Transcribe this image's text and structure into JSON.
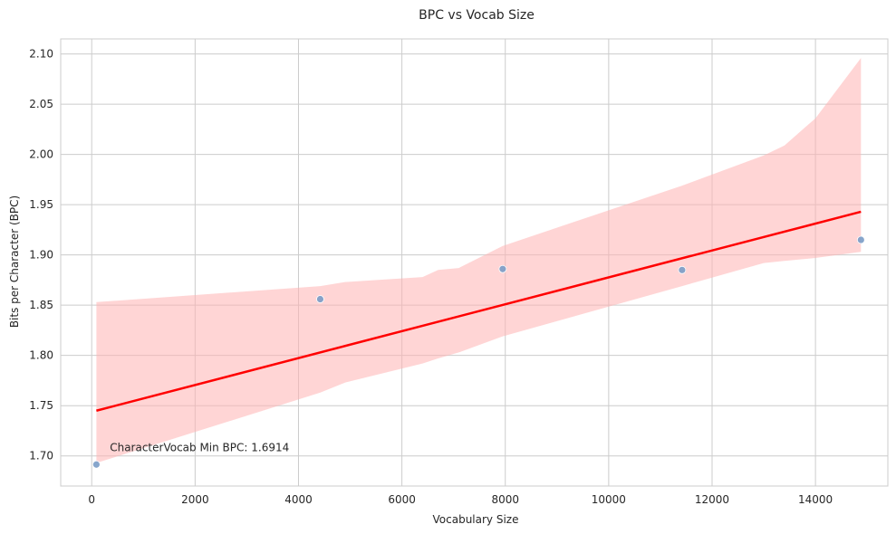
{
  "chart_data": {
    "type": "scatter",
    "title": "BPC vs Vocab Size",
    "xlabel": "Vocabulary Size",
    "ylabel": "Bits per Character (BPC)",
    "xlim": [
      -600,
      15400
    ],
    "ylim": [
      1.67,
      2.115
    ],
    "xticks": [
      0,
      2000,
      4000,
      6000,
      8000,
      10000,
      12000,
      14000
    ],
    "yticks": [
      1.7,
      1.75,
      1.8,
      1.85,
      1.9,
      1.95,
      2.0,
      2.05,
      2.1
    ],
    "xtick_labels": [
      "0",
      "2000",
      "4000",
      "6000",
      "8000",
      "10000",
      "12000",
      "14000"
    ],
    "ytick_labels": [
      "1.70",
      "1.75",
      "1.80",
      "1.85",
      "1.90",
      "1.95",
      "2.00",
      "2.05",
      "2.10"
    ],
    "grid": true,
    "points": {
      "x": [
        90,
        4420,
        7950,
        11420,
        14880
      ],
      "y": [
        1.6914,
        1.856,
        1.886,
        1.885,
        1.915
      ],
      "color": "#7a9cc6"
    },
    "regression": {
      "x": [
        90,
        14880
      ],
      "y": [
        1.745,
        1.943
      ],
      "color": "#ff0000"
    },
    "confidence_band": {
      "color": "#ffb3b3",
      "x": [
        90,
        4420,
        4900,
        6400,
        6700,
        7100,
        7950,
        11420,
        13000,
        13400,
        14000,
        14880
      ],
      "upper": [
        1.853,
        1.869,
        1.873,
        1.878,
        1.885,
        1.887,
        1.909,
        1.969,
        1.999,
        2.009,
        2.036,
        2.096
      ],
      "lower": [
        1.693,
        1.763,
        1.773,
        1.792,
        1.797,
        1.803,
        1.819,
        1.869,
        1.892,
        1.894,
        1.897,
        1.903
      ]
    },
    "annotation": {
      "text": "CharacterVocab Min BPC: 1.6914",
      "x": 350,
      "y": 1.7045
    }
  }
}
